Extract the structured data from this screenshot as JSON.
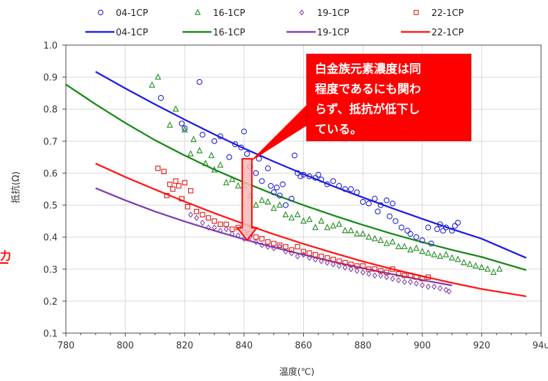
{
  "chart_data": {
    "type": "scatter",
    "xlabel": "温度(℃)",
    "ylabel": "抵抗(Ω)",
    "xlim": [
      780,
      940
    ],
    "ylim": [
      0.1,
      1.0
    ],
    "x_ticks": [
      "780",
      "800",
      "820",
      "840",
      "860",
      "880",
      "900",
      "920",
      "94u"
    ],
    "y_ticks": [
      "0.1",
      "0.2",
      "0.3",
      "0.4",
      "0.5",
      "0.6",
      "0.7",
      "0.8",
      "0.9",
      "1.0"
    ],
    "grid": true,
    "legend_position": "top",
    "series": [
      {
        "name": "04-1CP",
        "kind": "scatter",
        "marker": "circle",
        "color": "#1f1fd0",
        "points": [
          [
            812,
            0.835
          ],
          [
            825,
            0.885
          ],
          [
            819,
            0.755
          ],
          [
            820,
            0.74
          ],
          [
            826,
            0.72
          ],
          [
            830,
            0.7
          ],
          [
            832,
            0.715
          ],
          [
            835,
            0.65
          ],
          [
            837,
            0.69
          ],
          [
            839,
            0.68
          ],
          [
            840,
            0.73
          ],
          [
            841,
            0.66
          ],
          [
            842,
            0.62
          ],
          [
            844,
            0.6
          ],
          [
            845,
            0.645
          ],
          [
            846,
            0.575
          ],
          [
            848,
            0.615
          ],
          [
            849,
            0.56
          ],
          [
            850,
            0.54
          ],
          [
            851,
            0.555
          ],
          [
            852,
            0.53
          ],
          [
            853,
            0.565
          ],
          [
            854,
            0.5
          ],
          [
            856,
            0.52
          ],
          [
            857,
            0.655
          ],
          [
            858,
            0.6
          ],
          [
            859,
            0.59
          ],
          [
            860,
            0.595
          ],
          [
            862,
            0.59
          ],
          [
            864,
            0.585
          ],
          [
            865,
            0.595
          ],
          [
            866,
            0.58
          ],
          [
            868,
            0.565
          ],
          [
            870,
            0.575
          ],
          [
            872,
            0.56
          ],
          [
            874,
            0.55
          ],
          [
            876,
            0.55
          ],
          [
            878,
            0.54
          ],
          [
            880,
            0.51
          ],
          [
            882,
            0.505
          ],
          [
            884,
            0.52
          ],
          [
            885,
            0.48
          ],
          [
            886,
            0.5
          ],
          [
            888,
            0.515
          ],
          [
            889,
            0.465
          ],
          [
            890,
            0.505
          ],
          [
            891,
            0.45
          ],
          [
            893,
            0.43
          ],
          [
            895,
            0.42
          ],
          [
            896,
            0.41
          ],
          [
            898,
            0.4
          ],
          [
            900,
            0.39
          ],
          [
            902,
            0.43
          ],
          [
            903,
            0.38
          ],
          [
            905,
            0.425
          ],
          [
            906,
            0.44
          ],
          [
            907,
            0.42
          ],
          [
            908,
            0.43
          ],
          [
            910,
            0.42
          ],
          [
            911,
            0.435
          ],
          [
            912,
            0.445
          ]
        ]
      },
      {
        "name": "16-1CP",
        "kind": "scatter",
        "marker": "triangle",
        "color": "#1a8a1a",
        "points": [
          [
            809,
            0.875
          ],
          [
            811,
            0.9
          ],
          [
            815,
            0.75
          ],
          [
            817,
            0.8
          ],
          [
            820,
            0.735
          ],
          [
            822,
            0.66
          ],
          [
            823,
            0.705
          ],
          [
            825,
            0.67
          ],
          [
            827,
            0.63
          ],
          [
            829,
            0.655
          ],
          [
            830,
            0.61
          ],
          [
            832,
            0.625
          ],
          [
            834,
            0.57
          ],
          [
            836,
            0.58
          ],
          [
            838,
            0.56
          ],
          [
            840,
            0.56
          ],
          [
            842,
            0.53
          ],
          [
            844,
            0.5
          ],
          [
            846,
            0.515
          ],
          [
            848,
            0.51
          ],
          [
            850,
            0.49
          ],
          [
            852,
            0.5
          ],
          [
            854,
            0.47
          ],
          [
            856,
            0.46
          ],
          [
            858,
            0.47
          ],
          [
            860,
            0.45
          ],
          [
            862,
            0.455
          ],
          [
            864,
            0.43
          ],
          [
            866,
            0.45
          ],
          [
            868,
            0.43
          ],
          [
            870,
            0.435
          ],
          [
            872,
            0.44
          ],
          [
            874,
            0.42
          ],
          [
            876,
            0.42
          ],
          [
            878,
            0.41
          ],
          [
            880,
            0.41
          ],
          [
            882,
            0.4
          ],
          [
            884,
            0.395
          ],
          [
            886,
            0.39
          ],
          [
            888,
            0.38
          ],
          [
            890,
            0.385
          ],
          [
            892,
            0.37
          ],
          [
            894,
            0.37
          ],
          [
            896,
            0.36
          ],
          [
            898,
            0.365
          ],
          [
            900,
            0.355
          ],
          [
            902,
            0.35
          ],
          [
            904,
            0.345
          ],
          [
            906,
            0.34
          ],
          [
            908,
            0.345
          ],
          [
            910,
            0.335
          ],
          [
            912,
            0.33
          ],
          [
            914,
            0.32
          ],
          [
            916,
            0.315
          ],
          [
            918,
            0.31
          ],
          [
            920,
            0.305
          ],
          [
            922,
            0.3
          ],
          [
            924,
            0.29
          ],
          [
            926,
            0.3
          ]
        ]
      },
      {
        "name": "19-1CP",
        "kind": "scatter",
        "marker": "diamond",
        "color": "#8040b0",
        "points": [
          [
            822,
            0.47
          ],
          [
            824,
            0.46
          ],
          [
            826,
            0.445
          ],
          [
            828,
            0.43
          ],
          [
            830,
            0.43
          ],
          [
            832,
            0.42
          ],
          [
            834,
            0.425
          ],
          [
            836,
            0.41
          ],
          [
            838,
            0.405
          ],
          [
            840,
            0.395
          ],
          [
            842,
            0.4
          ],
          [
            844,
            0.385
          ],
          [
            846,
            0.375
          ],
          [
            848,
            0.37
          ],
          [
            850,
            0.365
          ],
          [
            852,
            0.37
          ],
          [
            854,
            0.355
          ],
          [
            856,
            0.35
          ],
          [
            858,
            0.34
          ],
          [
            860,
            0.345
          ],
          [
            862,
            0.335
          ],
          [
            864,
            0.33
          ],
          [
            866,
            0.325
          ],
          [
            868,
            0.32
          ],
          [
            870,
            0.315
          ],
          [
            872,
            0.31
          ],
          [
            874,
            0.305
          ],
          [
            876,
            0.3
          ],
          [
            878,
            0.295
          ],
          [
            880,
            0.29
          ],
          [
            882,
            0.285
          ],
          [
            884,
            0.28
          ],
          [
            886,
            0.28
          ],
          [
            888,
            0.275
          ],
          [
            890,
            0.27
          ],
          [
            892,
            0.265
          ],
          [
            894,
            0.26
          ],
          [
            896,
            0.26
          ],
          [
            898,
            0.255
          ],
          [
            900,
            0.25
          ],
          [
            902,
            0.245
          ],
          [
            904,
            0.245
          ],
          [
            906,
            0.24
          ],
          [
            908,
            0.235
          ],
          [
            909,
            0.23
          ]
        ]
      },
      {
        "name": "22-1CP",
        "kind": "scatter",
        "marker": "square",
        "color": "#e01010",
        "points": [
          [
            811,
            0.615
          ],
          [
            813,
            0.605
          ],
          [
            814,
            0.53
          ],
          [
            815,
            0.565
          ],
          [
            816,
            0.55
          ],
          [
            817,
            0.575
          ],
          [
            818,
            0.56
          ],
          [
            819,
            0.52
          ],
          [
            820,
            0.57
          ],
          [
            821,
            0.495
          ],
          [
            822,
            0.545
          ],
          [
            824,
            0.48
          ],
          [
            826,
            0.47
          ],
          [
            828,
            0.46
          ],
          [
            830,
            0.45
          ],
          [
            832,
            0.44
          ],
          [
            834,
            0.44
          ],
          [
            836,
            0.425
          ],
          [
            838,
            0.43
          ],
          [
            840,
            0.415
          ],
          [
            842,
            0.41
          ],
          [
            844,
            0.4
          ],
          [
            846,
            0.395
          ],
          [
            848,
            0.385
          ],
          [
            850,
            0.38
          ],
          [
            852,
            0.375
          ],
          [
            854,
            0.37
          ],
          [
            856,
            0.36
          ],
          [
            858,
            0.37
          ],
          [
            860,
            0.355
          ],
          [
            862,
            0.35
          ],
          [
            864,
            0.345
          ],
          [
            866,
            0.34
          ],
          [
            868,
            0.335
          ],
          [
            870,
            0.33
          ],
          [
            872,
            0.325
          ],
          [
            874,
            0.32
          ],
          [
            876,
            0.315
          ],
          [
            878,
            0.31
          ],
          [
            880,
            0.31
          ],
          [
            882,
            0.3
          ],
          [
            884,
            0.3
          ],
          [
            886,
            0.295
          ],
          [
            888,
            0.29
          ],
          [
            890,
            0.3
          ],
          [
            892,
            0.285
          ],
          [
            894,
            0.28
          ],
          [
            896,
            0.28
          ],
          [
            898,
            0.275
          ],
          [
            900,
            0.27
          ],
          [
            902,
            0.275
          ]
        ]
      },
      {
        "name": "04-1CP",
        "kind": "line",
        "color": "#2020e0",
        "x": [
          790,
          800,
          810,
          820,
          830,
          840,
          850,
          860,
          870,
          880,
          890,
          900,
          910,
          920,
          935
        ],
        "y": [
          0.917,
          0.865,
          0.815,
          0.767,
          0.721,
          0.677,
          0.636,
          0.597,
          0.559,
          0.524,
          0.49,
          0.457,
          0.425,
          0.395,
          0.335
        ]
      },
      {
        "name": "16-1CP",
        "kind": "line",
        "color": "#1a8a1a",
        "x": [
          780,
          790,
          800,
          810,
          820,
          830,
          840,
          850,
          860,
          870,
          880,
          890,
          900,
          910,
          920,
          935
        ],
        "y": [
          0.877,
          0.815,
          0.757,
          0.703,
          0.655,
          0.611,
          0.571,
          0.534,
          0.5,
          0.468,
          0.438,
          0.41,
          0.384,
          0.36,
          0.338,
          0.297
        ]
      },
      {
        "name": "19-1CP",
        "kind": "line",
        "color": "#8040b0",
        "x": [
          790,
          800,
          810,
          820,
          830,
          840,
          850,
          860,
          870,
          880,
          890,
          900,
          910
        ],
        "y": [
          0.553,
          0.515,
          0.48,
          0.449,
          0.42,
          0.393,
          0.368,
          0.345,
          0.323,
          0.303,
          0.284,
          0.266,
          0.249
        ]
      },
      {
        "name": "22-1CP",
        "kind": "line",
        "color": "#ff1a1a",
        "x": [
          790,
          800,
          810,
          820,
          830,
          840,
          850,
          860,
          870,
          880,
          890,
          900,
          910,
          920,
          935
        ],
        "y": [
          0.63,
          0.588,
          0.549,
          0.511,
          0.475,
          0.441,
          0.409,
          0.379,
          0.351,
          0.324,
          0.3,
          0.278,
          0.257,
          0.238,
          0.215
        ]
      }
    ],
    "annotation": {
      "lines": [
        "白金族元素濃度は同",
        "程度であるにも関わ",
        "らず、抵抗が低下し",
        "ている。"
      ],
      "box_color": "#ff0000",
      "arrow_fill": "#f6b9b9",
      "arrow_x": 841,
      "arrow_from": 0.645,
      "arrow_to": 0.39
    }
  },
  "left_fragment": "力",
  "colors": {
    "grid": "#d8d8d8",
    "axis": "#444444"
  }
}
